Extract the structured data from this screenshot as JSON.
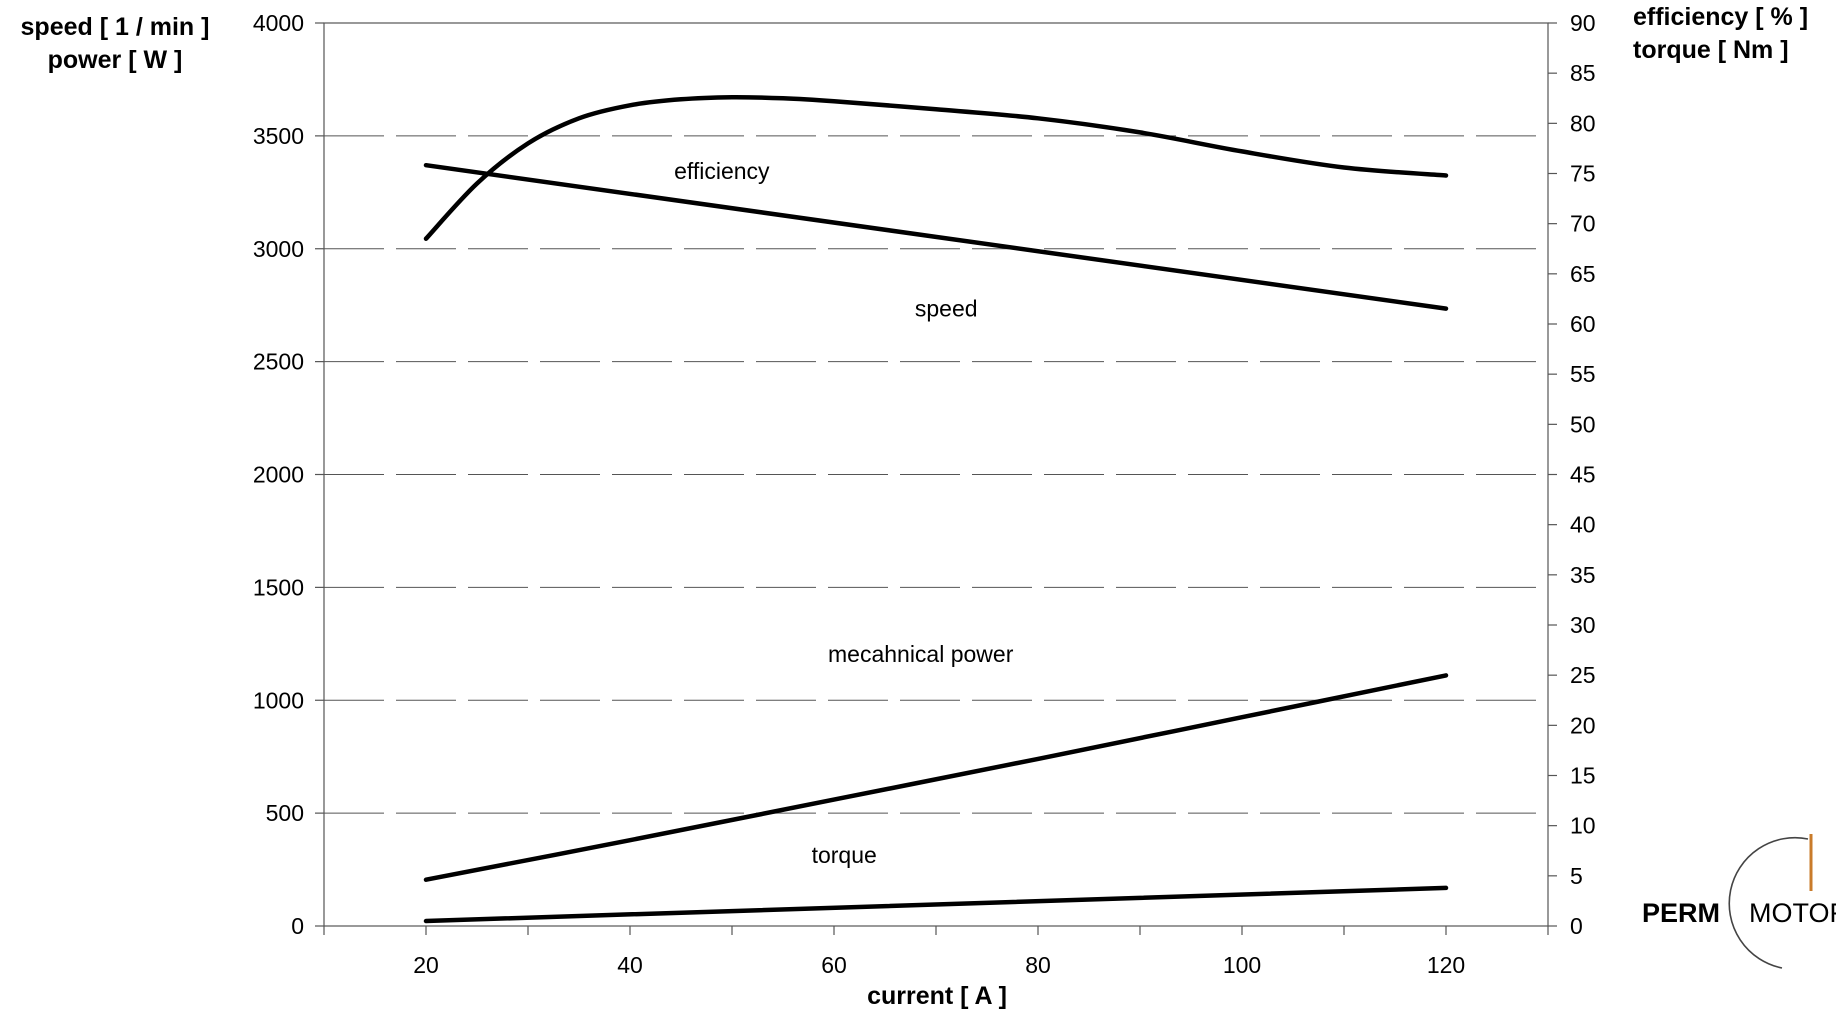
{
  "chart_data": {
    "type": "line",
    "xlabel": "current [ A ]",
    "ylabel_left": [
      "speed [ 1 / min ]",
      "power [ W ]"
    ],
    "ylabel_right": [
      "efficiency [ % ]",
      "torque [ Nm ]"
    ],
    "xlim": [
      10,
      130
    ],
    "ylim_left": [
      0,
      4000
    ],
    "ylim_right": [
      0,
      90
    ],
    "x_ticks": [
      20,
      40,
      60,
      80,
      100,
      120
    ],
    "y_left_ticks": [
      0,
      500,
      1000,
      1500,
      2000,
      2500,
      3000,
      3500,
      4000
    ],
    "y_right_ticks": [
      0,
      5,
      10,
      15,
      20,
      25,
      30,
      35,
      40,
      45,
      50,
      55,
      60,
      65,
      70,
      75,
      80,
      85,
      90
    ],
    "grid": "horizontal dashed",
    "series": [
      {
        "name": "efficiency",
        "axis": "right",
        "x": [
          20,
          25,
          30,
          35,
          40,
          45,
          50,
          55,
          60,
          70,
          80,
          90,
          100,
          110,
          120
        ],
        "y": [
          68.5,
          74,
          78,
          80.5,
          81.8,
          82.4,
          82.6,
          82.5,
          82.2,
          81.4,
          80.5,
          79.1,
          77.2,
          75.6,
          74.8
        ]
      },
      {
        "name": "speed",
        "axis": "left",
        "x": [
          20,
          120
        ],
        "y": [
          3370,
          2735
        ]
      },
      {
        "name": "mecahnical power",
        "axis": "left",
        "x": [
          20,
          40,
          60,
          80,
          100,
          120
        ],
        "y": [
          205,
          380,
          560,
          740,
          925,
          1110
        ]
      },
      {
        "name": "torque",
        "axis": "right",
        "x": [
          20,
          120
        ],
        "y": [
          0.5,
          3.8
        ]
      }
    ]
  },
  "logo": {
    "text_bold": "PERM",
    "text_light": "MOTOR"
  }
}
